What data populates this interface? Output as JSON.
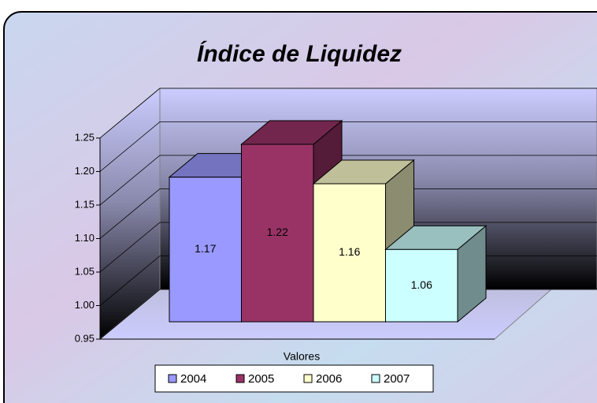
{
  "chart_data": {
    "type": "bar3d",
    "title": "Índice de Liquidez",
    "categories": [
      "Valores"
    ],
    "series": [
      {
        "name": "2004",
        "color": "#9999ff",
        "values": [
          1.17
        ]
      },
      {
        "name": "2005",
        "color": "#993366",
        "values": [
          1.22
        ]
      },
      {
        "name": "2006",
        "color": "#ffffcc",
        "values": [
          1.16
        ]
      },
      {
        "name": "2007",
        "color": "#ccffff",
        "values": [
          1.06
        ]
      }
    ],
    "ylim": [
      0.95,
      1.25
    ],
    "yticks": [
      0.95,
      {
        "value": 1.0,
        "label": "1.00"
      },
      1.05,
      {
        "value": 1.1,
        "label": "1.10"
      },
      1.15,
      {
        "value": 1.2,
        "label": "1.20"
      },
      1.25
    ],
    "grid": true,
    "legend": "bottom"
  }
}
